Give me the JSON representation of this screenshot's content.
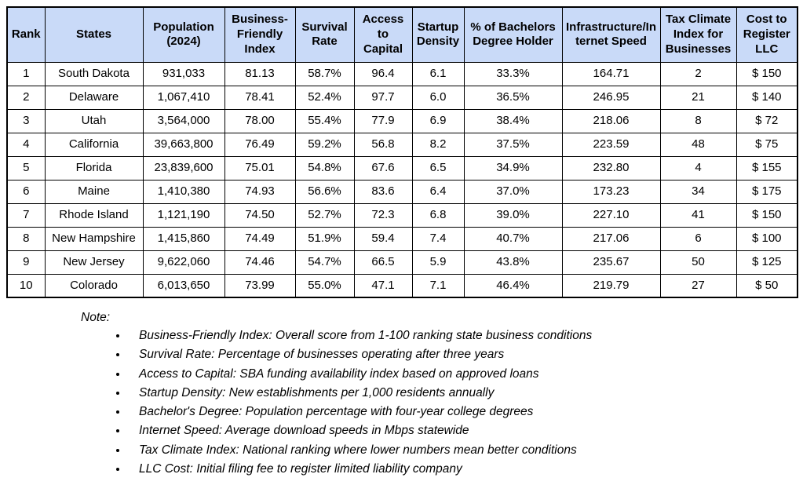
{
  "table": {
    "header_bg": "#c9daf8",
    "columns": [
      "Rank",
      "States",
      "Population (2024)",
      "Business-Friendly Index",
      "Survival Rate",
      "Access to Capital",
      "Startup Density",
      "% of Bachelors Degree Holder",
      "Infrastructure/Internet Speed",
      "Tax Climate Index for Businesses",
      "Cost to Register LLC"
    ],
    "rows": [
      [
        "1",
        "South Dakota",
        "931,033",
        "81.13",
        "58.7%",
        "96.4",
        "6.1",
        "33.3%",
        "164.71",
        "2",
        "$ 150"
      ],
      [
        "2",
        "Delaware",
        "1,067,410",
        "78.41",
        "52.4%",
        "97.7",
        "6.0",
        "36.5%",
        "246.95",
        "21",
        "$ 140"
      ],
      [
        "3",
        "Utah",
        "3,564,000",
        "78.00",
        "55.4%",
        "77.9",
        "6.9",
        "38.4%",
        "218.06",
        "8",
        "$ 72"
      ],
      [
        "4",
        "California",
        "39,663,800",
        "76.49",
        "59.2%",
        "56.8",
        "8.2",
        "37.5%",
        "223.59",
        "48",
        "$ 75"
      ],
      [
        "5",
        "Florida",
        "23,839,600",
        "75.01",
        "54.8%",
        "67.6",
        "6.5",
        "34.9%",
        "232.80",
        "4",
        "$ 155"
      ],
      [
        "6",
        "Maine",
        "1,410,380",
        "74.93",
        "56.6%",
        "83.6",
        "6.4",
        "37.0%",
        "173.23",
        "34",
        "$ 175"
      ],
      [
        "7",
        "Rhode Island",
        "1,121,190",
        "74.50",
        "52.7%",
        "72.3",
        "6.8",
        "39.0%",
        "227.10",
        "41",
        "$ 150"
      ],
      [
        "8",
        "New Hampshire",
        "1,415,860",
        "74.49",
        "51.9%",
        "59.4",
        "7.4",
        "40.7%",
        "217.06",
        "6",
        "$ 100"
      ],
      [
        "9",
        "New Jersey",
        "9,622,060",
        "74.46",
        "54.7%",
        "66.5",
        "5.9",
        "43.8%",
        "235.67",
        "50",
        "$ 125"
      ],
      [
        "10",
        "Colorado",
        "6,013,650",
        "73.99",
        "55.0%",
        "47.1",
        "7.1",
        "46.4%",
        "219.79",
        "27",
        "$ 50"
      ]
    ]
  },
  "notes": {
    "label": "Note:",
    "items": [
      "Business-Friendly Index: Overall score from 1-100 ranking state business conditions",
      "Survival Rate: Percentage of businesses operating after three years",
      "Access to Capital: SBA funding availability index based on approved loans",
      "Startup Density: New establishments per 1,000 residents annually",
      "Bachelor's Degree: Population percentage with four-year college degrees",
      "Internet Speed: Average download speeds in Mbps statewide",
      "Tax Climate Index: National ranking where lower numbers mean better conditions",
      "LLC Cost: Initial filing fee to register limited liability company"
    ]
  }
}
